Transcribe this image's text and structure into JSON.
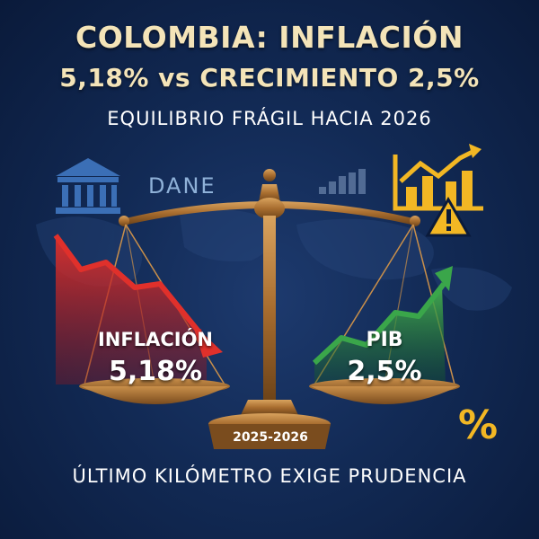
{
  "header": {
    "title_line1": "COLOMBIA: INFLACIÓN",
    "title_line2": "5,18% vs CRECIMIENTO 2,5%",
    "subtitle": "EQUILIBRIO FRÁGIL HACIA 2026"
  },
  "logos": {
    "institution_icon": "bank-building-icon",
    "dane_label": "DANE",
    "bars_icon": "bar-chart-icon",
    "warning_chart_icon": "rising-chart-warning-icon"
  },
  "scale": {
    "left_pan": {
      "label": "INFLACIÓN",
      "value": "5,18%",
      "trend": "down",
      "color": "#d62a2a"
    },
    "right_pan": {
      "label": "PIB",
      "value": "2,5%",
      "trend": "up",
      "color": "#3aa64a"
    },
    "base_label": "2025-2026"
  },
  "decor": {
    "percent_symbol": "%"
  },
  "footer": {
    "text": "ÚLTIMO KILÓMETRO EXIGE PRUDENCIA"
  },
  "colors": {
    "background": "#122a55",
    "title": "#f4e4b8",
    "gold": "#b37a3a",
    "warning": "#f2b724"
  }
}
